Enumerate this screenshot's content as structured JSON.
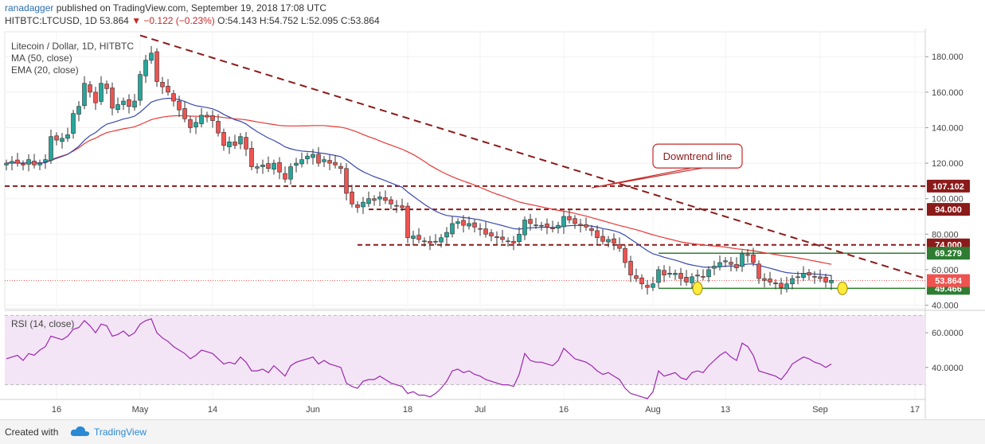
{
  "header": {
    "author": "ranadagger",
    "published": "published on TradingView.com, September 19, 2018 17:08 UTC",
    "symbol": "HITBTC:LTCUSD, 1D",
    "last": "53.864",
    "change": "▼ −0.122 (−0.23%)",
    "ohlc": "O:54.143 H:54.752 L:52.095 C:53.864"
  },
  "footer": {
    "created_with": "Created with",
    "brand": "TradingView"
  },
  "colors": {
    "up": "#26a69a",
    "down": "#ef5350",
    "ma50": "#e53935",
    "ema20": "#3949ab",
    "trend": "#8b1a1a",
    "support": "#2e7d32",
    "rsi_line": "#9c27b0",
    "rsi_fill": "#f3e5f5"
  },
  "chart_data": [
    {
      "type": "candlestick",
      "title": "Litecoin / Dollar, 1D, HITBTC",
      "indicators": [
        "MA (50, close)",
        "EMA (20, close)"
      ],
      "ylim": [
        38,
        194
      ],
      "y_ticks": [
        "40.000",
        "60.000",
        "80.000",
        "100.000",
        "120.000",
        "140.000",
        "160.000",
        "180.000"
      ],
      "x_ticks": [
        {
          "label": "16",
          "index": 9
        },
        {
          "label": "May",
          "index": 24
        },
        {
          "label": "14",
          "index": 37
        },
        {
          "label": "Jun",
          "index": 55
        },
        {
          "label": "18",
          "index": 72
        },
        {
          "label": "Jul",
          "index": 85
        },
        {
          "label": "16",
          "index": 100
        },
        {
          "label": "Aug",
          "index": 116
        },
        {
          "label": "13",
          "index": 129
        },
        {
          "label": "Sep",
          "index": 146
        },
        {
          "label": "17",
          "index": 163
        }
      ],
      "start_date": "2018-04-07",
      "closes": [
        120,
        121,
        120,
        119,
        122,
        119,
        120,
        122,
        135,
        133,
        134,
        136,
        148,
        152,
        165,
        160,
        154,
        165,
        162,
        151,
        153,
        155,
        152,
        155,
        170,
        178,
        182,
        166,
        163,
        160,
        155,
        150,
        145,
        140,
        143,
        147,
        146,
        144,
        137,
        130,
        132,
        130,
        135,
        128,
        118,
        118,
        119,
        117,
        120,
        115,
        111,
        118,
        120,
        122,
        124,
        125,
        120,
        122,
        120,
        119,
        117,
        103,
        97,
        95,
        98,
        100,
        99,
        101,
        99,
        97,
        96,
        95,
        78,
        79,
        77,
        76,
        75,
        76,
        78,
        81,
        86,
        87,
        85,
        86,
        84,
        83,
        80,
        79,
        78,
        77,
        76,
        75,
        80,
        88,
        86,
        85,
        85,
        84,
        83,
        85,
        90,
        88,
        86,
        85,
        84,
        82,
        78,
        76,
        77,
        75,
        72,
        64,
        57,
        55,
        52,
        50,
        52,
        60,
        57,
        58,
        58,
        55,
        53,
        56,
        57,
        56,
        60,
        62,
        64,
        65,
        63,
        61,
        69,
        68,
        64,
        55,
        54,
        53,
        52,
        50,
        52,
        55,
        56,
        58,
        57,
        56,
        55,
        53,
        54
      ],
      "hlines": [
        {
          "value": 107.102,
          "label": "107.102",
          "color": "#8b1a1a",
          "style": "dashed"
        },
        {
          "value": 94.0,
          "label": "94.000",
          "color": "#8b1a1a",
          "style": "dashed"
        },
        {
          "value": 74.0,
          "label": "74.000",
          "color": "#8b1a1a",
          "style": "dashed"
        },
        {
          "value": 69.279,
          "label": "69.279",
          "color": "#2e7d32",
          "style": "solid"
        },
        {
          "value": 49.466,
          "label": "49.466",
          "color": "#2e7d32",
          "style": "solid"
        }
      ],
      "last_price": {
        "value": 53.864,
        "label": "53.864"
      },
      "trendline": {
        "from": {
          "index": 24,
          "value": 192
        },
        "to": {
          "index": 168,
          "value": 52
        }
      },
      "annotations": [
        {
          "text": "Downtrend line",
          "index": 124,
          "value": 124
        }
      ]
    },
    {
      "type": "line",
      "title": "RSI (14, close)",
      "ylim": [
        22,
        72
      ],
      "y_ticks": [
        "40.0000",
        "60.0000"
      ],
      "bands": [
        30,
        70
      ],
      "values": [
        45,
        46,
        47,
        44,
        48,
        47,
        50,
        52,
        58,
        57,
        56,
        58,
        62,
        63,
        67,
        64,
        60,
        65,
        64,
        58,
        59,
        61,
        58,
        60,
        65,
        67,
        68,
        60,
        57,
        55,
        52,
        50,
        48,
        45,
        47,
        50,
        49,
        48,
        45,
        42,
        43,
        42,
        46,
        43,
        38,
        38,
        39,
        37,
        41,
        38,
        35,
        41,
        43,
        44,
        45,
        46,
        42,
        44,
        42,
        41,
        40,
        31,
        29,
        28,
        32,
        33,
        33,
        35,
        33,
        31,
        30,
        29,
        25,
        26,
        24,
        24,
        23,
        25,
        28,
        32,
        38,
        39,
        37,
        38,
        36,
        35,
        33,
        32,
        31,
        30,
        30,
        29,
        36,
        48,
        44,
        43,
        43,
        42,
        41,
        44,
        51,
        48,
        45,
        44,
        43,
        41,
        38,
        36,
        37,
        35,
        33,
        28,
        25,
        24,
        23,
        22,
        26,
        38,
        35,
        36,
        37,
        34,
        33,
        37,
        38,
        37,
        41,
        44,
        47,
        49,
        46,
        44,
        54,
        52,
        47,
        38,
        37,
        36,
        35,
        33,
        37,
        42,
        44,
        46,
        45,
        43,
        42,
        40,
        42
      ]
    }
  ]
}
